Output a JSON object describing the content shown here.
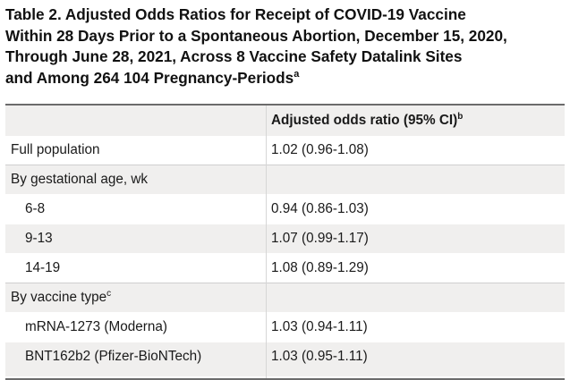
{
  "title": {
    "line1": "Table 2. Adjusted Odds Ratios for Receipt of COVID-19 Vaccine",
    "line2": "Within 28 Days Prior to a Spontaneous Abortion, December 15, 2020,",
    "line3": "Through June 28, 2021, Across 8 Vaccine Safety Datalink Sites",
    "line4": "and Among 264 104 Pregnancy-Periods",
    "line4_sup": "a"
  },
  "table": {
    "header_col1": "",
    "header_col2": "Adjusted odds ratio (95% CI)",
    "header_col2_sup": "b",
    "rows": [
      {
        "label": "Full population",
        "value": "1.02 (0.96-1.08)"
      },
      {
        "label": "By gestational age, wk",
        "value": ""
      },
      {
        "label": "6-8",
        "value": "0.94 (0.86-1.03)"
      },
      {
        "label": "9-13",
        "value": "1.07 (0.99-1.17)"
      },
      {
        "label": "14-19",
        "value": "1.08 (0.89-1.29)"
      },
      {
        "label": "By vaccine type",
        "label_sup": "c",
        "value": ""
      },
      {
        "label": "mRNA-1273 (Moderna)",
        "value": "1.03 (0.94-1.11)"
      },
      {
        "label": "BNT162b2 (Pfizer-BioNTech)",
        "value": "1.03 (0.95-1.11)"
      }
    ]
  }
}
